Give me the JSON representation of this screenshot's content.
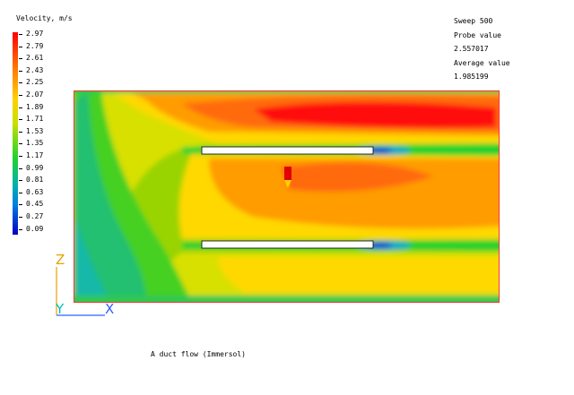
{
  "legend": {
    "title": "Velocity, m/s",
    "values": [
      "2.97",
      "2.79",
      "2.61",
      "2.43",
      "2.25",
      "2.07",
      "1.89",
      "1.71",
      "1.53",
      "1.35",
      "1.17",
      "0.99",
      "0.81",
      "0.63",
      "0.45",
      "0.27",
      "0.09"
    ]
  },
  "info": {
    "sweep": "Sweep 500",
    "probe_label": "Probe value",
    "probe_value": "2.557017",
    "average_label": "Average value",
    "average_value": "1.985199"
  },
  "axes": {
    "z": "Z",
    "y": "Y",
    "x": "X"
  },
  "caption": "A duct flow (Immersol)",
  "colors": {
    "frame": "#ff3333",
    "axis_z": "#e8a000",
    "axis_y": "#00c0c0",
    "axis_x": "#3060ff",
    "probe": "#e00000"
  }
}
